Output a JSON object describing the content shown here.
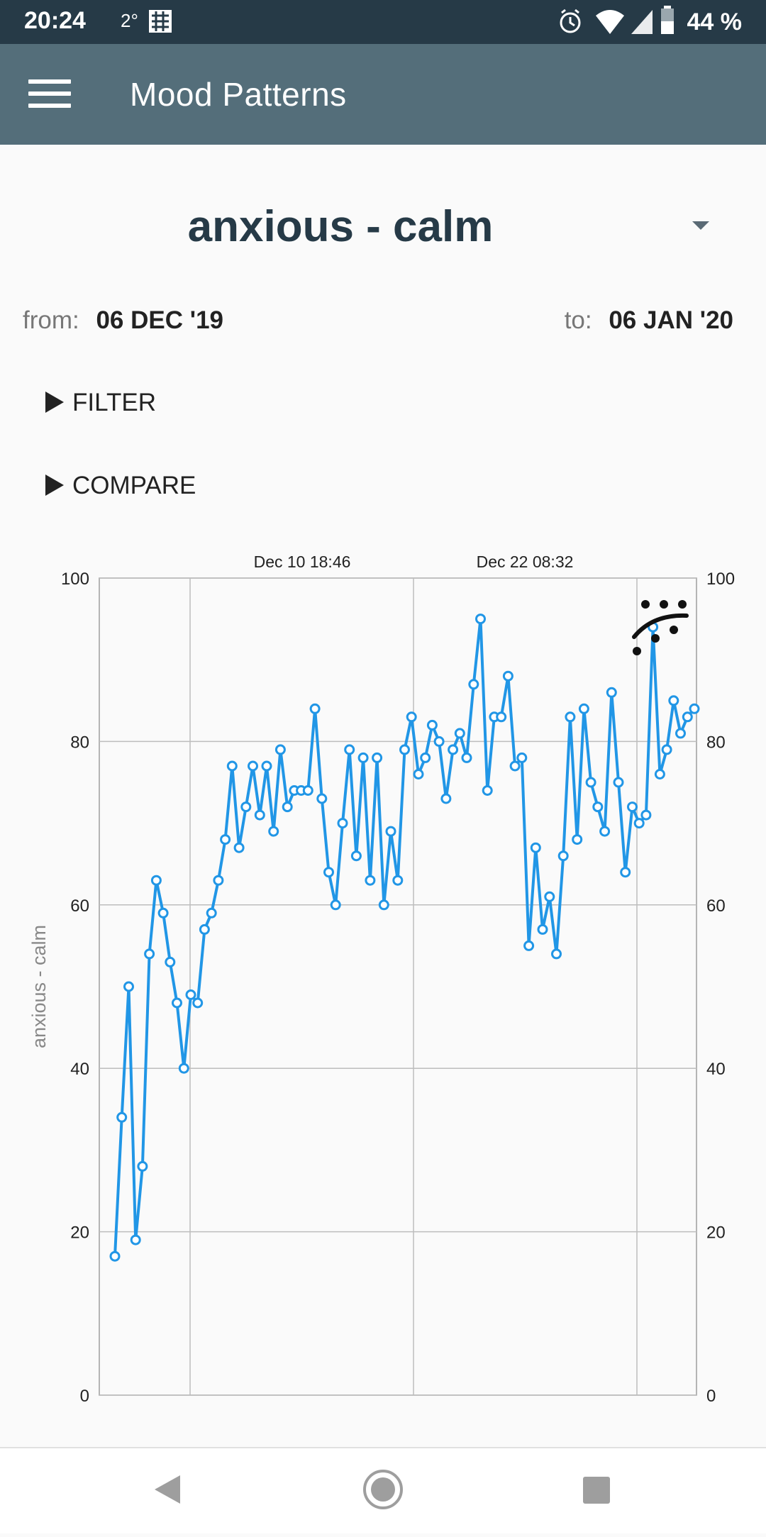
{
  "status_bar": {
    "time": "20:24",
    "temperature": "2°",
    "battery_percent": "44 %",
    "icons": [
      "alarm-icon",
      "wifi-icon",
      "cell-signal-icon",
      "battery-icon"
    ]
  },
  "app_bar": {
    "title": "Mood Patterns",
    "menu_icon": "hamburger-menu-icon",
    "background": "#546e7a"
  },
  "mood_selector": {
    "selected": "anxious - calm",
    "icon": "dropdown-caret-icon"
  },
  "date_range": {
    "from_label": "from:",
    "from_value": "06 DEC '19",
    "to_label": "to:",
    "to_value": "06 JAN '20"
  },
  "filter": {
    "label": "FILTER",
    "icon": "triangle-right-icon"
  },
  "compare": {
    "label": "COMPARE",
    "icon": "triangle-right-icon"
  },
  "chart_data": {
    "type": "line",
    "ylabel": "anxious - calm",
    "ylim": [
      0,
      100
    ],
    "yticks": [
      0,
      20,
      40,
      60,
      80,
      100
    ],
    "x_top_labels": [
      "Dec 10 18:46",
      "Dec 22 08:32"
    ],
    "grid": true,
    "line_color": "#2196e6",
    "marker_face": "#ffffff",
    "series": [
      {
        "values": [
          17,
          34,
          50,
          19,
          28,
          54,
          63,
          59,
          53,
          48,
          40,
          49,
          48,
          57,
          59,
          63,
          68,
          77,
          67,
          72,
          77,
          71,
          77,
          69,
          79,
          72,
          74,
          74,
          74,
          84,
          73,
          64,
          60,
          70,
          79,
          66,
          78,
          63,
          78,
          60,
          69,
          63,
          79,
          83,
          76,
          78,
          82,
          80,
          73,
          79,
          81,
          78,
          87,
          95,
          74,
          83,
          83,
          88,
          77,
          78,
          55,
          67,
          57,
          61,
          54,
          66,
          83,
          68,
          84,
          75,
          72,
          69,
          86,
          75,
          64,
          72,
          70,
          71,
          94,
          76,
          79,
          85,
          81,
          83,
          84
        ]
      }
    ],
    "annotation_icon": "happy-face-icon"
  },
  "nav_bar": {
    "icons": [
      "back-icon",
      "home-icon",
      "recents-icon"
    ]
  }
}
